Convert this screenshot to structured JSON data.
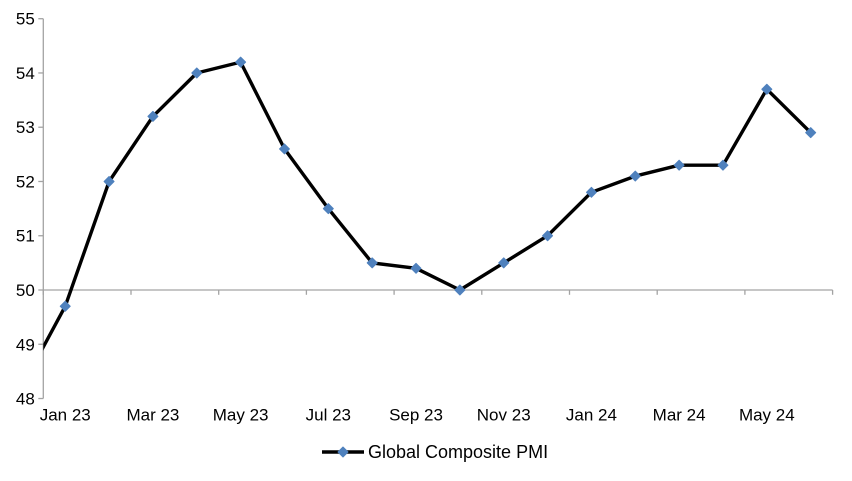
{
  "chart_data": {
    "type": "line",
    "title": "",
    "categories": [
      "Jan 23",
      "Feb 23",
      "Mar 23",
      "Apr 23",
      "May 23",
      "Jun 23",
      "Jul 23",
      "Aug 23",
      "Sep 23",
      "Oct 23",
      "Nov 23",
      "Dec 23",
      "Jan 24",
      "Feb 24",
      "Mar 24",
      "Apr 24",
      "May 24",
      "Jun 24"
    ],
    "series": [
      {
        "name": "Global Composite PMI",
        "values": [
          49.7,
          52.0,
          53.2,
          54.0,
          54.2,
          52.6,
          51.5,
          50.5,
          50.4,
          50.0,
          50.5,
          51.0,
          51.8,
          52.1,
          52.3,
          52.3,
          53.7,
          52.9
        ]
      }
    ],
    "leading_clipped_point": {
      "category": "Dec 22",
      "value": 48.2
    },
    "ylim": [
      48,
      55
    ],
    "y_ticks": [
      48,
      49,
      50,
      51,
      52,
      53,
      54,
      55
    ],
    "x_tick_labels": [
      "Jan 23",
      "Mar 23",
      "May 23",
      "Jul 23",
      "Sep 23",
      "Nov 23",
      "Jan 24",
      "Mar 24",
      "May 24"
    ],
    "x_label_every": 2,
    "axis_crosses_at": 50,
    "grid": false,
    "marker_shape": "diamond",
    "legend": {
      "label": "Global Composite PMI",
      "position": "bottom-center",
      "marker": "line-diamond"
    },
    "colors": {
      "line": "#000000",
      "marker": "#4F81BD",
      "axis": "#A3A3A3",
      "text": "#000000",
      "background": "#FFFFFF"
    }
  }
}
